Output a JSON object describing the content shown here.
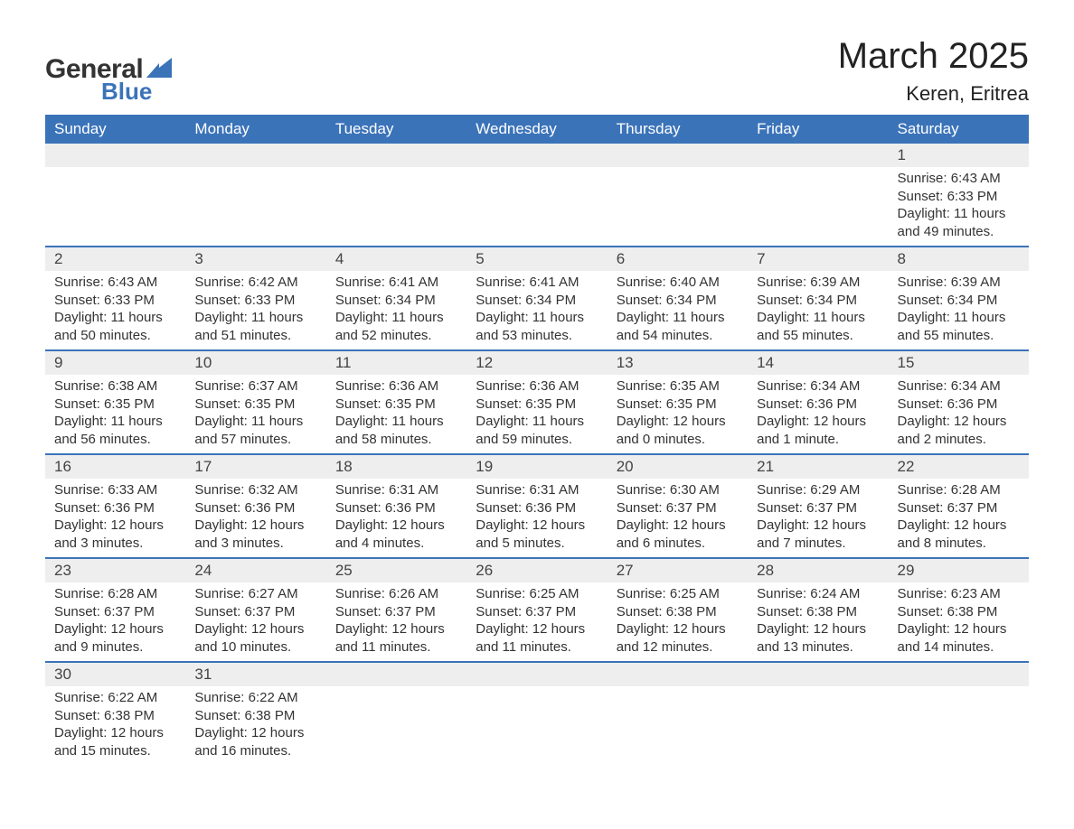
{
  "logo": {
    "general": "General",
    "blue": "Blue"
  },
  "title": "March 2025",
  "location": "Keren, Eritrea",
  "colors": {
    "header_bg": "#3b73b9",
    "header_text": "#ffffff",
    "daynum_bg": "#eeeeee",
    "row_border": "#3b73b9",
    "text": "#333333",
    "logo_blue": "#3b73b9"
  },
  "weekdays": [
    "Sunday",
    "Monday",
    "Tuesday",
    "Wednesday",
    "Thursday",
    "Friday",
    "Saturday"
  ],
  "weeks": [
    [
      null,
      null,
      null,
      null,
      null,
      null,
      {
        "n": "1",
        "sr": "Sunrise: 6:43 AM",
        "ss": "Sunset: 6:33 PM",
        "d1": "Daylight: 11 hours",
        "d2": "and 49 minutes."
      }
    ],
    [
      {
        "n": "2",
        "sr": "Sunrise: 6:43 AM",
        "ss": "Sunset: 6:33 PM",
        "d1": "Daylight: 11 hours",
        "d2": "and 50 minutes."
      },
      {
        "n": "3",
        "sr": "Sunrise: 6:42 AM",
        "ss": "Sunset: 6:33 PM",
        "d1": "Daylight: 11 hours",
        "d2": "and 51 minutes."
      },
      {
        "n": "4",
        "sr": "Sunrise: 6:41 AM",
        "ss": "Sunset: 6:34 PM",
        "d1": "Daylight: 11 hours",
        "d2": "and 52 minutes."
      },
      {
        "n": "5",
        "sr": "Sunrise: 6:41 AM",
        "ss": "Sunset: 6:34 PM",
        "d1": "Daylight: 11 hours",
        "d2": "and 53 minutes."
      },
      {
        "n": "6",
        "sr": "Sunrise: 6:40 AM",
        "ss": "Sunset: 6:34 PM",
        "d1": "Daylight: 11 hours",
        "d2": "and 54 minutes."
      },
      {
        "n": "7",
        "sr": "Sunrise: 6:39 AM",
        "ss": "Sunset: 6:34 PM",
        "d1": "Daylight: 11 hours",
        "d2": "and 55 minutes."
      },
      {
        "n": "8",
        "sr": "Sunrise: 6:39 AM",
        "ss": "Sunset: 6:34 PM",
        "d1": "Daylight: 11 hours",
        "d2": "and 55 minutes."
      }
    ],
    [
      {
        "n": "9",
        "sr": "Sunrise: 6:38 AM",
        "ss": "Sunset: 6:35 PM",
        "d1": "Daylight: 11 hours",
        "d2": "and 56 minutes."
      },
      {
        "n": "10",
        "sr": "Sunrise: 6:37 AM",
        "ss": "Sunset: 6:35 PM",
        "d1": "Daylight: 11 hours",
        "d2": "and 57 minutes."
      },
      {
        "n": "11",
        "sr": "Sunrise: 6:36 AM",
        "ss": "Sunset: 6:35 PM",
        "d1": "Daylight: 11 hours",
        "d2": "and 58 minutes."
      },
      {
        "n": "12",
        "sr": "Sunrise: 6:36 AM",
        "ss": "Sunset: 6:35 PM",
        "d1": "Daylight: 11 hours",
        "d2": "and 59 minutes."
      },
      {
        "n": "13",
        "sr": "Sunrise: 6:35 AM",
        "ss": "Sunset: 6:35 PM",
        "d1": "Daylight: 12 hours",
        "d2": "and 0 minutes."
      },
      {
        "n": "14",
        "sr": "Sunrise: 6:34 AM",
        "ss": "Sunset: 6:36 PM",
        "d1": "Daylight: 12 hours",
        "d2": "and 1 minute."
      },
      {
        "n": "15",
        "sr": "Sunrise: 6:34 AM",
        "ss": "Sunset: 6:36 PM",
        "d1": "Daylight: 12 hours",
        "d2": "and 2 minutes."
      }
    ],
    [
      {
        "n": "16",
        "sr": "Sunrise: 6:33 AM",
        "ss": "Sunset: 6:36 PM",
        "d1": "Daylight: 12 hours",
        "d2": "and 3 minutes."
      },
      {
        "n": "17",
        "sr": "Sunrise: 6:32 AM",
        "ss": "Sunset: 6:36 PM",
        "d1": "Daylight: 12 hours",
        "d2": "and 3 minutes."
      },
      {
        "n": "18",
        "sr": "Sunrise: 6:31 AM",
        "ss": "Sunset: 6:36 PM",
        "d1": "Daylight: 12 hours",
        "d2": "and 4 minutes."
      },
      {
        "n": "19",
        "sr": "Sunrise: 6:31 AM",
        "ss": "Sunset: 6:36 PM",
        "d1": "Daylight: 12 hours",
        "d2": "and 5 minutes."
      },
      {
        "n": "20",
        "sr": "Sunrise: 6:30 AM",
        "ss": "Sunset: 6:37 PM",
        "d1": "Daylight: 12 hours",
        "d2": "and 6 minutes."
      },
      {
        "n": "21",
        "sr": "Sunrise: 6:29 AM",
        "ss": "Sunset: 6:37 PM",
        "d1": "Daylight: 12 hours",
        "d2": "and 7 minutes."
      },
      {
        "n": "22",
        "sr": "Sunrise: 6:28 AM",
        "ss": "Sunset: 6:37 PM",
        "d1": "Daylight: 12 hours",
        "d2": "and 8 minutes."
      }
    ],
    [
      {
        "n": "23",
        "sr": "Sunrise: 6:28 AM",
        "ss": "Sunset: 6:37 PM",
        "d1": "Daylight: 12 hours",
        "d2": "and 9 minutes."
      },
      {
        "n": "24",
        "sr": "Sunrise: 6:27 AM",
        "ss": "Sunset: 6:37 PM",
        "d1": "Daylight: 12 hours",
        "d2": "and 10 minutes."
      },
      {
        "n": "25",
        "sr": "Sunrise: 6:26 AM",
        "ss": "Sunset: 6:37 PM",
        "d1": "Daylight: 12 hours",
        "d2": "and 11 minutes."
      },
      {
        "n": "26",
        "sr": "Sunrise: 6:25 AM",
        "ss": "Sunset: 6:37 PM",
        "d1": "Daylight: 12 hours",
        "d2": "and 11 minutes."
      },
      {
        "n": "27",
        "sr": "Sunrise: 6:25 AM",
        "ss": "Sunset: 6:38 PM",
        "d1": "Daylight: 12 hours",
        "d2": "and 12 minutes."
      },
      {
        "n": "28",
        "sr": "Sunrise: 6:24 AM",
        "ss": "Sunset: 6:38 PM",
        "d1": "Daylight: 12 hours",
        "d2": "and 13 minutes."
      },
      {
        "n": "29",
        "sr": "Sunrise: 6:23 AM",
        "ss": "Sunset: 6:38 PM",
        "d1": "Daylight: 12 hours",
        "d2": "and 14 minutes."
      }
    ],
    [
      {
        "n": "30",
        "sr": "Sunrise: 6:22 AM",
        "ss": "Sunset: 6:38 PM",
        "d1": "Daylight: 12 hours",
        "d2": "and 15 minutes."
      },
      {
        "n": "31",
        "sr": "Sunrise: 6:22 AM",
        "ss": "Sunset: 6:38 PM",
        "d1": "Daylight: 12 hours",
        "d2": "and 16 minutes."
      },
      null,
      null,
      null,
      null,
      null
    ]
  ]
}
